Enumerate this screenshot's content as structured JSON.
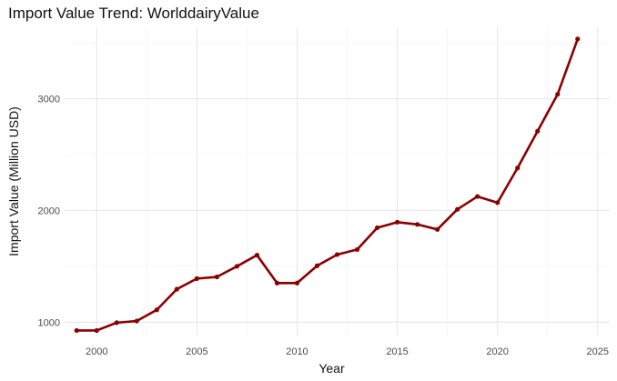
{
  "chart_data": {
    "type": "line",
    "title": "Import Value Trend: WorlddairyValue",
    "xlabel": "Year",
    "ylabel": "Import Value (Million USD)",
    "x_ticks": [
      2000,
      2005,
      2010,
      2015,
      2020,
      2025
    ],
    "y_ticks": [
      1000,
      2000,
      3000
    ],
    "xlim": [
      1998.4,
      2025.6
    ],
    "ylim": [
      880,
      3640
    ],
    "grid": true,
    "legend": "none",
    "series": [
      {
        "color": "#8B0000",
        "x": [
          1999,
          2000,
          2001,
          2002,
          2003,
          2004,
          2005,
          2006,
          2007,
          2008,
          2009,
          2010,
          2011,
          2012,
          2013,
          2014,
          2015,
          2016,
          2017,
          2018,
          2019,
          2020,
          2021,
          2022,
          2023,
          2024
        ],
        "y": [
          925,
          925,
          995,
          1010,
          1110,
          1295,
          1390,
          1405,
          1500,
          1600,
          1350,
          1350,
          1505,
          1605,
          1650,
          1845,
          1895,
          1875,
          1830,
          2010,
          2125,
          2070,
          2380,
          2710,
          3040,
          3535
        ]
      }
    ]
  }
}
